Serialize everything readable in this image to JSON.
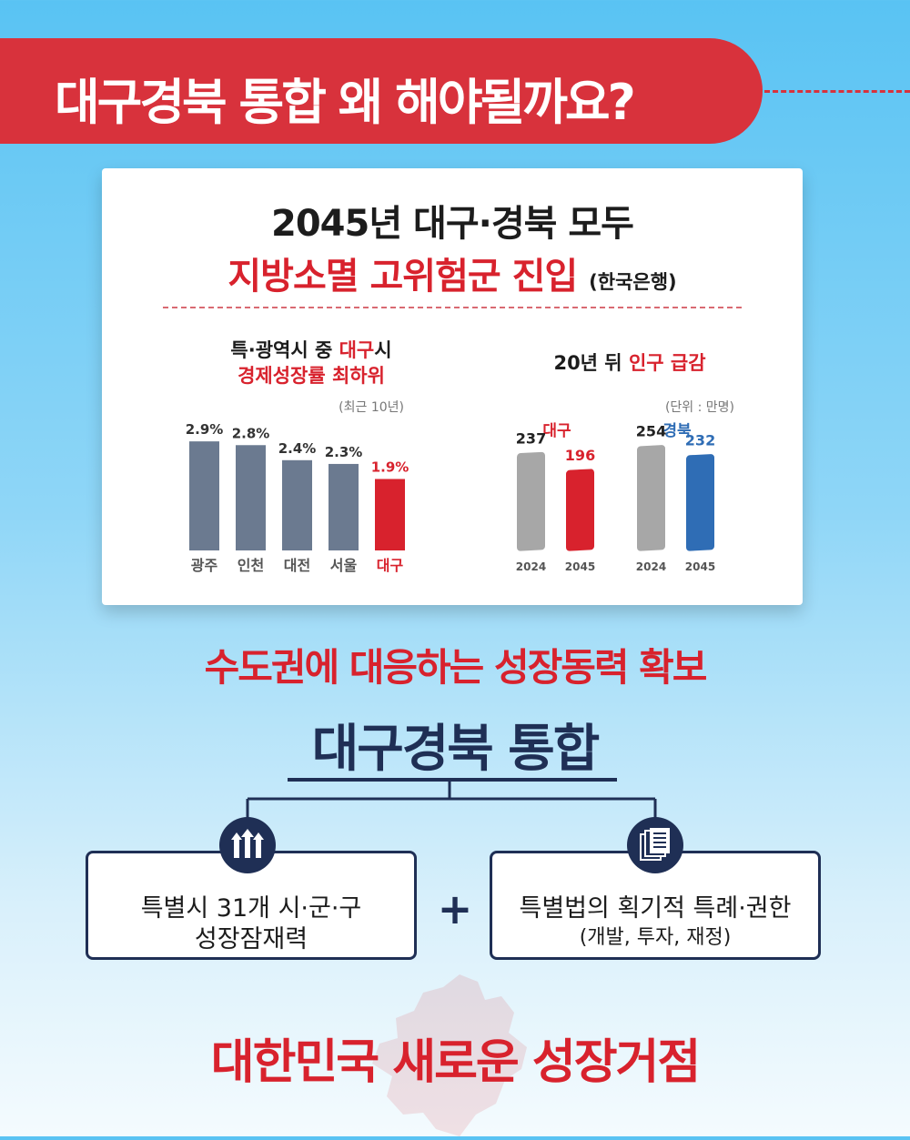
{
  "banner": {
    "title": "대구경북 통합 왜 해야될까요?"
  },
  "card": {
    "title_line1": "2045년 대구·경북 모두",
    "title_line2": "지방소멸 고위험군 진입",
    "source": "(한국은행)",
    "chart1": {
      "heading_prefix": "특·광역시 중 ",
      "heading_highlight": "대구",
      "heading_suffix": "시",
      "heading_line2": "경제성장률 최하위",
      "note": "(최근 10년)"
    },
    "chart2": {
      "heading_prefix": "20년 뒤 ",
      "heading_highlight": "인구 급감",
      "note": "(단위 : 만명)",
      "group1": "대구",
      "group2": "경북"
    }
  },
  "chart_data": [
    {
      "type": "bar",
      "categories": [
        "광주",
        "인천",
        "대전",
        "서울",
        "대구"
      ],
      "values": [
        2.9,
        2.8,
        2.4,
        2.3,
        1.9
      ],
      "value_labels": [
        "2.9%",
        "2.8%",
        "2.4%",
        "2.3%",
        "1.9%"
      ],
      "colors": [
        "#6b7a90",
        "#6b7a90",
        "#6b7a90",
        "#6b7a90",
        "#d8222d"
      ],
      "ylim": [
        0,
        3.0
      ]
    },
    {
      "type": "bar",
      "groups": [
        {
          "name": "대구",
          "categories": [
            "2024",
            "2045"
          ],
          "values": [
            237,
            196
          ],
          "colors": [
            "#a7a7a7",
            "#d8222d"
          ]
        },
        {
          "name": "경북",
          "categories": [
            "2024",
            "2045"
          ],
          "values": [
            254,
            232
          ],
          "colors": [
            "#a7a7a7",
            "#2f6db5"
          ]
        }
      ],
      "ylim": [
        0,
        260
      ]
    }
  ],
  "slogan": "수도권에 대응하는 성장동력 확보",
  "main_title": "대구경북 통합",
  "box_left": {
    "line1": "특별시 31개 시·군·구",
    "line2": "성장잠재력",
    "icon": "up-arrows-icon"
  },
  "plus": "+",
  "box_right": {
    "line1": "특별법의 획기적 특례·권한",
    "line2": "(개발, 투자, 재정)",
    "icon": "documents-icon"
  },
  "final": "대한민국 새로운 성장거점"
}
